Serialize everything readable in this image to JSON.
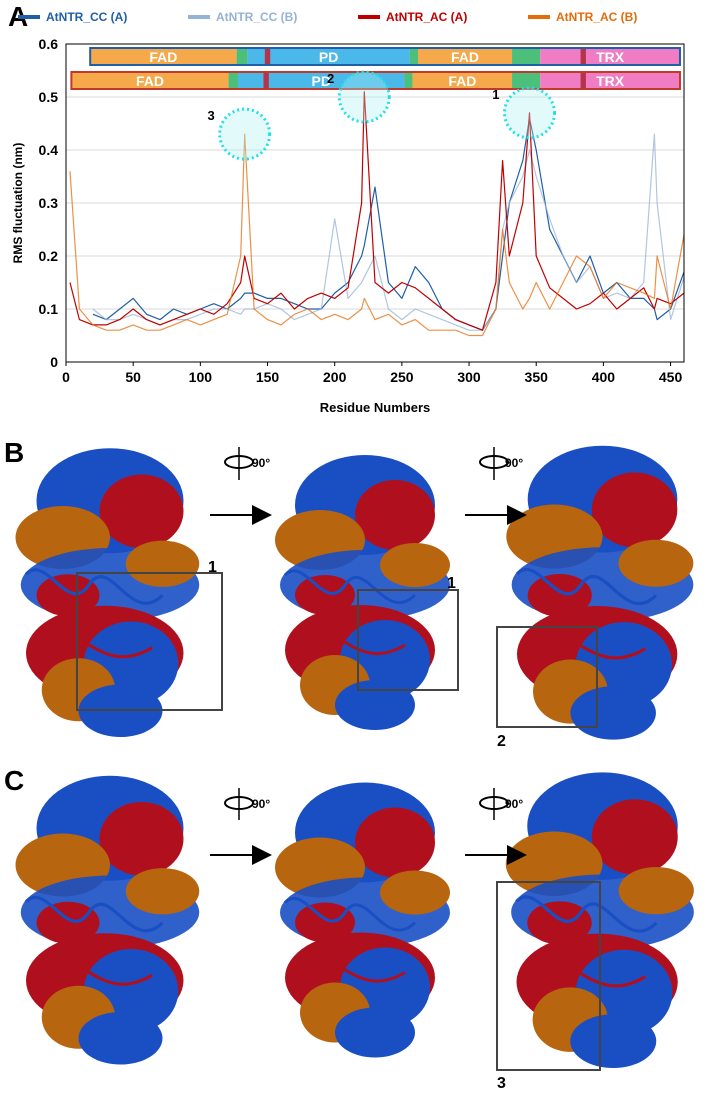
{
  "chart_data": {
    "type": "line",
    "panel_label": "A",
    "y_label": "RMS fluctuation (nm)",
    "x_label": "Residue Numbers",
    "xlim": [
      0,
      460
    ],
    "xticks": [
      0,
      50,
      100,
      150,
      200,
      250,
      300,
      350,
      400,
      450
    ],
    "ylim": [
      0,
      0.6
    ],
    "yticks": [
      0,
      0.1,
      0.2,
      0.3,
      0.4,
      0.5,
      0.6
    ],
    "grid": true,
    "x": [
      3,
      10,
      20,
      30,
      40,
      50,
      60,
      70,
      80,
      90,
      100,
      110,
      120,
      130,
      133,
      140,
      150,
      160,
      170,
      180,
      190,
      200,
      210,
      220,
      222,
      230,
      240,
      250,
      260,
      270,
      280,
      290,
      300,
      310,
      320,
      325,
      330,
      340,
      345,
      350,
      360,
      370,
      380,
      390,
      400,
      410,
      420,
      430,
      438,
      440,
      450,
      460
    ],
    "series": [
      {
        "name": "AtNTR_CC (A)",
        "color": "#1f5fa8",
        "values": [
          null,
          null,
          0.09,
          0.08,
          0.1,
          0.12,
          0.09,
          0.08,
          0.1,
          0.09,
          0.1,
          0.11,
          0.1,
          0.12,
          0.13,
          0.13,
          0.12,
          0.12,
          0.11,
          0.1,
          0.1,
          0.13,
          0.15,
          0.2,
          0.22,
          0.33,
          0.15,
          0.12,
          0.18,
          0.15,
          0.1,
          0.08,
          0.07,
          0.06,
          0.1,
          0.2,
          0.3,
          0.38,
          0.46,
          0.4,
          0.25,
          0.2,
          0.15,
          0.2,
          0.13,
          0.15,
          0.12,
          0.12,
          0.1,
          0.08,
          0.1,
          0.17
        ]
      },
      {
        "name": "AtNTR_CC (B)",
        "color": "#95b3d7",
        "values": [
          null,
          null,
          0.1,
          0.08,
          0.08,
          0.09,
          0.08,
          0.07,
          0.08,
          0.08,
          0.09,
          0.1,
          0.1,
          0.09,
          0.1,
          0.1,
          0.11,
          0.1,
          0.08,
          0.09,
          0.1,
          0.27,
          0.12,
          0.15,
          0.16,
          0.2,
          0.1,
          0.08,
          0.1,
          0.09,
          0.08,
          0.07,
          0.06,
          0.06,
          0.1,
          0.25,
          0.3,
          0.35,
          0.4,
          0.35,
          0.27,
          0.2,
          0.15,
          0.18,
          0.12,
          0.13,
          0.12,
          0.15,
          0.43,
          0.3,
          0.08,
          0.16
        ]
      },
      {
        "name": "AtNTR_AC (A)",
        "color": "#c00000",
        "values": [
          0.15,
          0.08,
          0.07,
          0.07,
          0.08,
          0.1,
          0.08,
          0.07,
          0.08,
          0.09,
          0.1,
          0.09,
          0.11,
          0.15,
          0.2,
          0.12,
          0.11,
          0.13,
          0.1,
          0.12,
          0.13,
          0.12,
          0.14,
          0.3,
          0.51,
          0.15,
          0.13,
          0.15,
          0.14,
          0.12,
          0.1,
          0.08,
          0.07,
          0.06,
          0.15,
          0.38,
          0.2,
          0.3,
          0.47,
          0.2,
          0.14,
          0.12,
          0.1,
          0.11,
          0.13,
          0.1,
          0.12,
          0.14,
          0.1,
          0.12,
          0.11,
          0.13
        ]
      },
      {
        "name": "AtNTR_AC (B)",
        "color": "#e46c0a",
        "values": [
          0.36,
          0.1,
          0.07,
          0.06,
          0.06,
          0.07,
          0.06,
          0.06,
          0.07,
          0.08,
          0.07,
          0.08,
          0.09,
          0.2,
          0.43,
          0.1,
          0.08,
          0.07,
          0.09,
          0.1,
          0.08,
          0.09,
          0.08,
          0.1,
          0.12,
          0.08,
          0.09,
          0.07,
          0.08,
          0.06,
          0.06,
          0.06,
          0.05,
          0.05,
          0.1,
          0.25,
          0.15,
          0.1,
          0.12,
          0.15,
          0.1,
          0.15,
          0.2,
          0.18,
          0.12,
          0.15,
          0.14,
          0.13,
          0.12,
          0.2,
          0.1,
          0.24
        ]
      }
    ],
    "domain_bars": [
      {
        "border": "#1f5fa8",
        "segments": [
          {
            "label": "FAD",
            "start": 18,
            "end": 127,
            "color": "#f5a94b"
          },
          {
            "start": 127,
            "end": 135,
            "color": "#4cbf7a"
          },
          {
            "label": "PD",
            "start": 135,
            "end": 256,
            "color": "#4ab8e8"
          },
          {
            "start": 256,
            "end": 262,
            "color": "#4cbf7a"
          },
          {
            "label": "FAD",
            "start": 262,
            "end": 332,
            "color": "#f5a94b"
          },
          {
            "start": 332,
            "end": 353,
            "color": "#4cbf7a"
          },
          {
            "label": "TRX",
            "start": 353,
            "end": 457,
            "color": "#f07cc4"
          },
          {
            "start": 148,
            "end": 152,
            "color": "#b5344a"
          },
          {
            "start": 383,
            "end": 387,
            "color": "#b5344a"
          }
        ]
      },
      {
        "border": "#c0392b",
        "segments": [
          {
            "label": "FAD",
            "start": 4,
            "end": 121,
            "color": "#f5a94b"
          },
          {
            "start": 121,
            "end": 128,
            "color": "#4cbf7a"
          },
          {
            "label": "PD",
            "start": 128,
            "end": 252,
            "color": "#4ab8e8"
          },
          {
            "start": 252,
            "end": 258,
            "color": "#4cbf7a"
          },
          {
            "label": "FAD",
            "start": 258,
            "end": 332,
            "color": "#f5a94b"
          },
          {
            "start": 332,
            "end": 353,
            "color": "#4cbf7a"
          },
          {
            "label": "TRX",
            "start": 353,
            "end": 457,
            "color": "#f07cc4"
          },
          {
            "start": 147,
            "end": 151,
            "color": "#b5344a"
          },
          {
            "start": 383,
            "end": 387,
            "color": "#b5344a"
          }
        ]
      }
    ],
    "annotations": [
      {
        "label": "3",
        "x": 133,
        "y": 0.43
      },
      {
        "label": "2",
        "x": 222,
        "y": 0.5
      },
      {
        "label": "1",
        "x": 345,
        "y": 0.47
      }
    ]
  },
  "panels": {
    "B": {
      "label": "B",
      "rotations": [
        "90°",
        "90°"
      ],
      "boxes": [
        "1",
        "1",
        "2"
      ]
    },
    "C": {
      "label": "C",
      "rotations": [
        "90°",
        "90°"
      ],
      "boxes": [
        "3"
      ]
    }
  }
}
